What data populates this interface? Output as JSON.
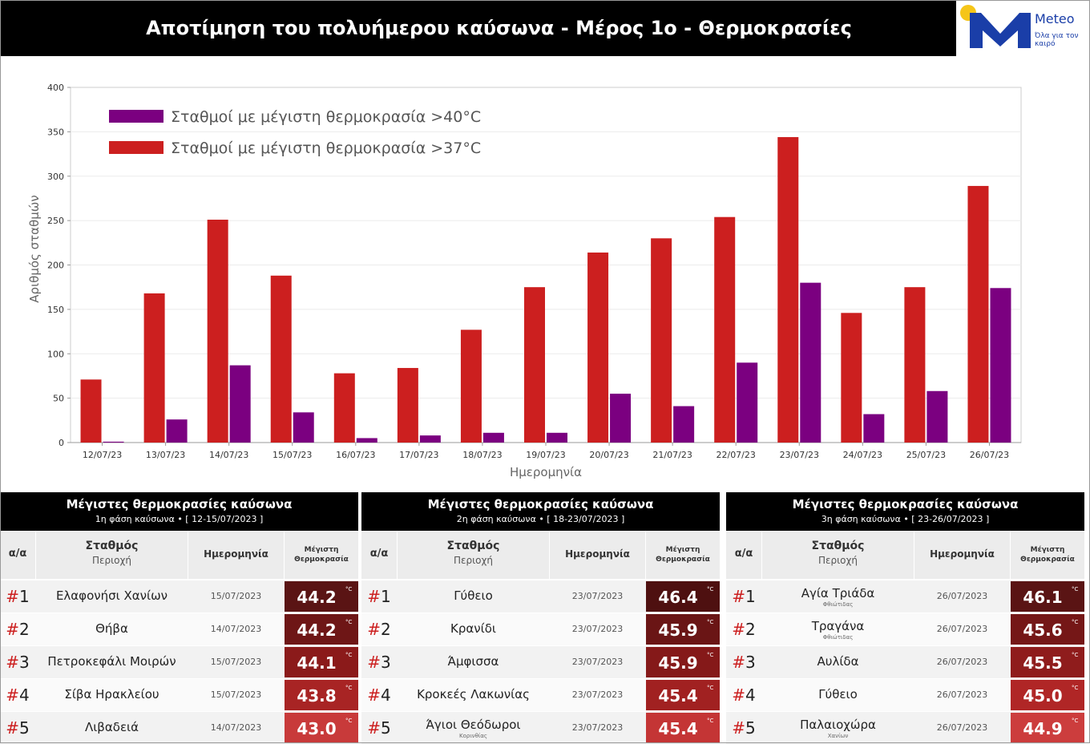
{
  "header": {
    "title": "Αποτίμηση του πολυήμερου καύσωνα - Μέρος 1ο - Θερμοκρασίες",
    "logo": {
      "brand": "Meteo",
      "tagline": "Όλα για τον καιρό",
      "icon": "meteo-m-logo-icon"
    }
  },
  "chart_data": {
    "type": "bar",
    "title": "",
    "xlabel": "Ημερομηνία",
    "ylabel": "Αριθμός σταθμών",
    "ylim": [
      0,
      400
    ],
    "yticks": [
      "0",
      "50",
      "100",
      "150",
      "200",
      "250",
      "300",
      "350",
      "400"
    ],
    "grid": true,
    "legend_position": "top-left",
    "categories": [
      "12/07/23",
      "13/07/23",
      "14/07/23",
      "15/07/23",
      "16/07/23",
      "17/07/23",
      "18/07/23",
      "19/07/23",
      "20/07/23",
      "21/07/23",
      "22/07/23",
      "23/07/23",
      "24/07/23",
      "25/07/23",
      "26/07/23"
    ],
    "series": [
      {
        "name": "Σταθμοί με μέγιστη θερμοκρασία >37°C",
        "color": "#cc1f1f",
        "values": [
          71,
          168,
          251,
          188,
          78,
          84,
          127,
          175,
          214,
          230,
          254,
          344,
          146,
          175,
          289
        ]
      },
      {
        "name": "Σταθμοί με μέγιστη θερμοκρασία >40°C",
        "color": "#7b0080",
        "values": [
          1,
          26,
          87,
          34,
          5,
          8,
          11,
          11,
          55,
          41,
          90,
          180,
          32,
          58,
          174
        ]
      }
    ],
    "legend_order": [
      1,
      0
    ]
  },
  "tables": [
    {
      "title": "Μέγιστες θερμοκρασίες καύσωνα",
      "subtitle": "1η φάση καύσωνα • [ 12-15/07/2023 ]",
      "headers": {
        "rank": "α/α",
        "station": "Σταθμός",
        "region": "Περιοχή",
        "date": "Ημερομηνία",
        "max_line1": "Μέγιστη",
        "max_line2": "Θερμοκρασία"
      },
      "rows": [
        {
          "rank": "1",
          "station": "Ελαφονήσι Χανίων",
          "sub": "",
          "date": "15/07/2023",
          "temp": "44.2",
          "unit": "°C",
          "color": "#5a1414"
        },
        {
          "rank": "2",
          "station": "Θήβα",
          "sub": "",
          "date": "14/07/2023",
          "temp": "44.2",
          "unit": "°C",
          "color": "#6e1616"
        },
        {
          "rank": "3",
          "station": "Πετροκεφάλι Μοιρών",
          "sub": "",
          "date": "15/07/2023",
          "temp": "44.1",
          "unit": "°C",
          "color": "#8b1a1a"
        },
        {
          "rank": "4",
          "station": "Σίβα Ηρακλείου",
          "sub": "",
          "date": "15/07/2023",
          "temp": "43.8",
          "unit": "°C",
          "color": "#a82424"
        },
        {
          "rank": "5",
          "station": "Λιβαδειά",
          "sub": "",
          "date": "14/07/2023",
          "temp": "43.0",
          "unit": "°C",
          "color": "#c83a3a"
        }
      ]
    },
    {
      "title": "Μέγιστες θερμοκρασίες καύσωνα",
      "subtitle": "2η φάση καύσωνα • [ 18-23/07/2023 ]",
      "headers": {
        "rank": "α/α",
        "station": "Σταθμός",
        "region": "Περιοχή",
        "date": "Ημερομηνία",
        "max_line1": "Μέγιστη",
        "max_line2": "Θερμοκρασία"
      },
      "rows": [
        {
          "rank": "1",
          "station": "Γύθειο",
          "sub": "",
          "date": "23/07/2023",
          "temp": "46.4",
          "unit": "°C",
          "color": "#4e1010"
        },
        {
          "rank": "2",
          "station": "Κρανίδι",
          "sub": "",
          "date": "23/07/2023",
          "temp": "45.9",
          "unit": "°C",
          "color": "#6a1515"
        },
        {
          "rank": "3",
          "station": "Άμφισσα",
          "sub": "",
          "date": "23/07/2023",
          "temp": "45.9",
          "unit": "°C",
          "color": "#851919"
        },
        {
          "rank": "4",
          "station": "Κροκεές Λακωνίας",
          "sub": "",
          "date": "23/07/2023",
          "temp": "45.4",
          "unit": "°C",
          "color": "#a12121"
        },
        {
          "rank": "5",
          "station": "Άγιοι Θεόδωροι",
          "sub": "Κορινθίας",
          "date": "23/07/2023",
          "temp": "45.4",
          "unit": "°C",
          "color": "#c43535"
        }
      ]
    },
    {
      "title": "Μέγιστες θερμοκρασίες καύσωνα",
      "subtitle": "3η φάση καύσωνα • [ 23-26/07/2023 ]",
      "headers": {
        "rank": "α/α",
        "station": "Σταθμός",
        "region": "Περιοχή",
        "date": "Ημερομηνία",
        "max_line1": "Μέγιστη",
        "max_line2": "Θερμοκρασία"
      },
      "rows": [
        {
          "rank": "1",
          "station": "Αγία Τριάδα",
          "sub": "Φθιώτιδας",
          "date": "26/07/2023",
          "temp": "46.1",
          "unit": "°C",
          "color": "#5a1414"
        },
        {
          "rank": "2",
          "station": "Τραγάνα",
          "sub": "Φθιώτιδας",
          "date": "26/07/2023",
          "temp": "45.6",
          "unit": "°C",
          "color": "#751717"
        },
        {
          "rank": "3",
          "station": "Αυλίδα",
          "sub": "",
          "date": "26/07/2023",
          "temp": "45.5",
          "unit": "°C",
          "color": "#8f1c1c"
        },
        {
          "rank": "4",
          "station": "Γύθειο",
          "sub": "",
          "date": "26/07/2023",
          "temp": "45.0",
          "unit": "°C",
          "color": "#b02626"
        },
        {
          "rank": "5",
          "station": "Παλαιοχώρα",
          "sub": "Χανίων",
          "date": "26/07/2023",
          "temp": "44.9",
          "unit": "°C",
          "color": "#cc3d3d"
        }
      ]
    }
  ]
}
